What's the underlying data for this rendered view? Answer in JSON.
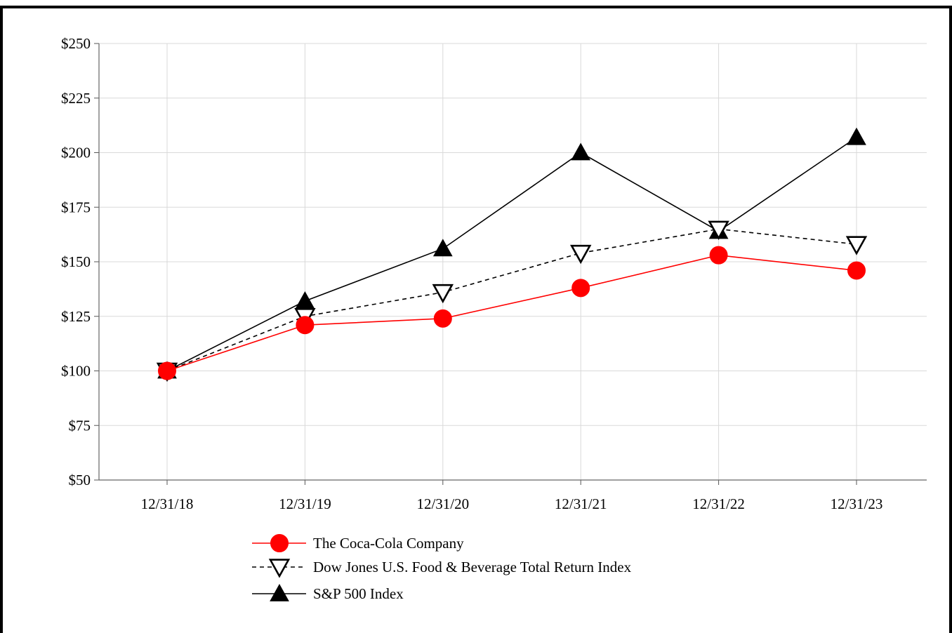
{
  "chart_data": {
    "type": "line",
    "title": "",
    "xlabel": "",
    "ylabel": "",
    "categories": [
      "12/31/18",
      "12/31/19",
      "12/31/20",
      "12/31/21",
      "12/31/22",
      "12/31/23"
    ],
    "y_tick_labels": [
      "$50",
      "$75",
      "$100",
      "$125",
      "$150",
      "$175",
      "$200",
      "$225",
      "$250"
    ],
    "y_ticks": [
      50,
      75,
      100,
      125,
      150,
      175,
      200,
      225,
      250
    ],
    "ylim": [
      50,
      250
    ],
    "grid": true,
    "legend_position": "bottom",
    "series": [
      {
        "name": "The Coca-Cola Company",
        "values": [
          100,
          121,
          124,
          138,
          153,
          146
        ],
        "color": "#ff0000",
        "line_style": "solid",
        "marker": "circle"
      },
      {
        "name": "Dow Jones U.S. Food & Beverage Total Return Index",
        "values": [
          100,
          125,
          136,
          154,
          165,
          158
        ],
        "color": "#000000",
        "line_style": "dashed",
        "marker": "triangle-down-open"
      },
      {
        "name": "S&P 500 Index",
        "values": [
          100,
          132,
          156,
          200,
          164,
          207
        ],
        "color": "#000000",
        "line_style": "solid",
        "marker": "triangle-up"
      }
    ]
  }
}
